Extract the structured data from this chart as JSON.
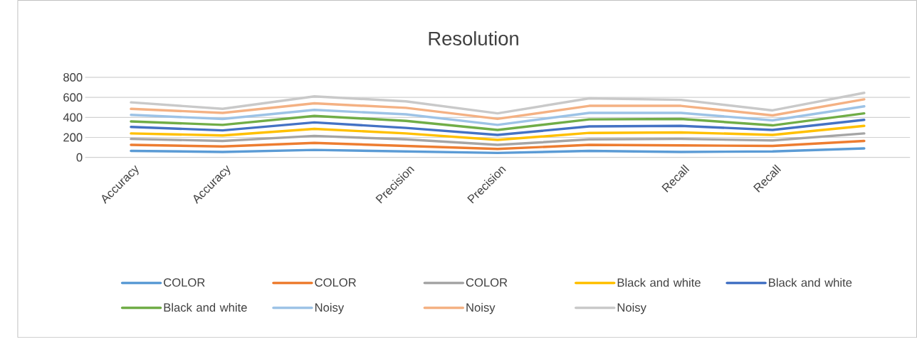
{
  "chart_data": {
    "type": "line",
    "title": "Resolution",
    "grid": "y",
    "legend": "bottom",
    "marker": "none",
    "line_style": "solid",
    "categories": [
      "Accuracy",
      "Accuracy",
      null,
      "Precision",
      "Precision",
      null,
      "Recall",
      "Recall",
      null
    ],
    "ylim": [
      0,
      800
    ],
    "yticks": [
      0,
      200,
      400,
      600,
      800
    ],
    "series": [
      {
        "name": "COLOR",
        "color": "#5b9bd5",
        "values": [
          65,
          55,
          75,
          60,
          45,
          65,
          55,
          60,
          90
        ]
      },
      {
        "name": "COLOR",
        "color": "#ed7d31",
        "values": [
          125,
          110,
          145,
          115,
          85,
          125,
          120,
          115,
          165
        ]
      },
      {
        "name": "COLOR",
        "color": "#a5a5a5",
        "values": [
          185,
          165,
          215,
          180,
          125,
          180,
          185,
          170,
          240
        ]
      },
      {
        "name": "Black and white",
        "color": "#ffc000",
        "values": [
          240,
          220,
          285,
          240,
          175,
          245,
          250,
          225,
          315
        ]
      },
      {
        "name": "Black and white",
        "color": "#4472c4",
        "values": [
          305,
          270,
          350,
          295,
          225,
          310,
          315,
          275,
          375
        ]
      },
      {
        "name": "Black and white",
        "color": "#70ad47",
        "values": [
          360,
          325,
          415,
          365,
          275,
          380,
          385,
          320,
          440
        ]
      },
      {
        "name": "Noisy",
        "color": "#9dc3e6",
        "values": [
          425,
          385,
          475,
          430,
          325,
          445,
          445,
          370,
          510
        ]
      },
      {
        "name": "Noisy",
        "color": "#f4b183",
        "values": [
          485,
          445,
          540,
          495,
          385,
          515,
          515,
          420,
          580
        ]
      },
      {
        "name": "Noisy",
        "color": "#c9c9c9",
        "values": [
          550,
          485,
          610,
          560,
          440,
          590,
          575,
          470,
          645
        ]
      }
    ]
  }
}
